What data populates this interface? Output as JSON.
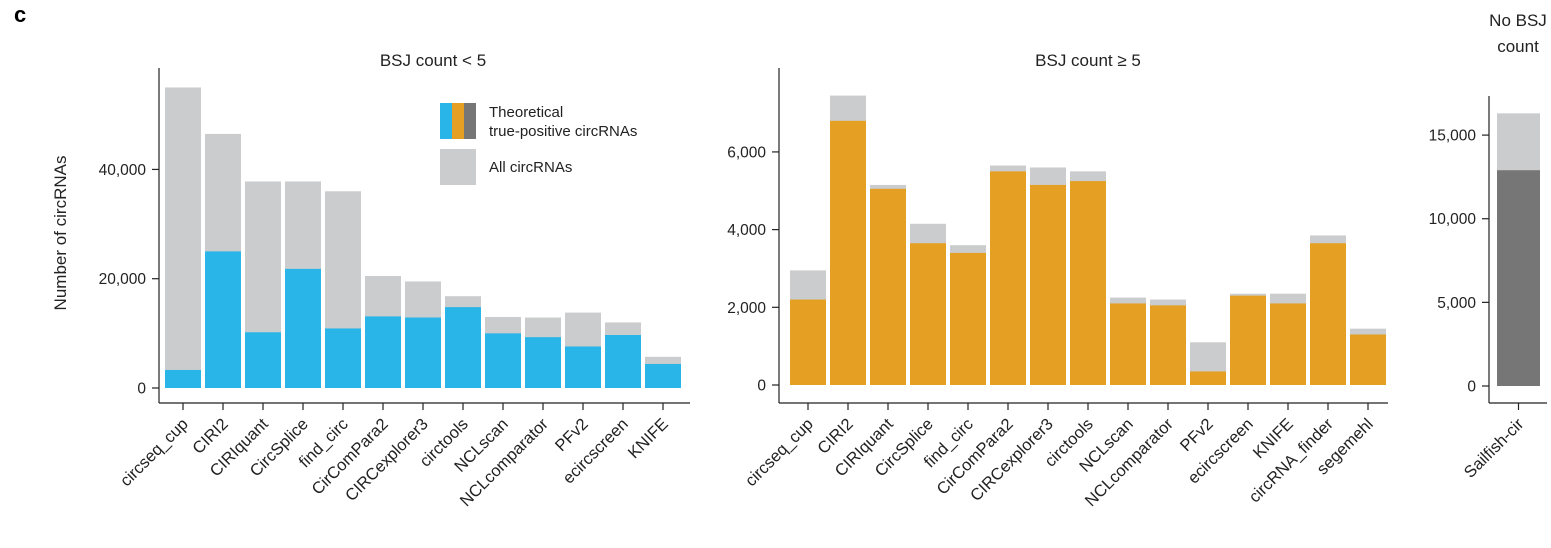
{
  "panel_label": "c",
  "colors": {
    "all": "#cbcccd",
    "blue": "#29b5e8",
    "orange": "#e5a024",
    "dark": "#767676",
    "axis": "#222222"
  },
  "legend": {
    "true_positive_label_line1": "Theoretical",
    "true_positive_label_line2": "true-positive circRNAs",
    "all_label": "All circRNAs"
  },
  "chart_data": [
    {
      "type": "bar",
      "title": "BSJ count < 5",
      "ylabel": "Number of circRNAs",
      "xlabel": "",
      "ylim": [
        0,
        56000
      ],
      "yticks": [
        0,
        20000,
        40000
      ],
      "ytick_labels": [
        "0",
        "20,000",
        "40,000"
      ],
      "categories": [
        "circseq_cup",
        "CIRI2",
        "CIRIquant",
        "CircSplice",
        "find_circ",
        "CirComPara2",
        "CIRCexplorer3",
        "circtools",
        "NCLscan",
        "NCLcomparator",
        "PFv2",
        "ecircscreen",
        "KNIFE"
      ],
      "series": [
        {
          "name": "All circRNAs",
          "values": [
            55000,
            46500,
            37800,
            37800,
            36000,
            20500,
            19500,
            16800,
            13000,
            12900,
            13800,
            12000,
            5700
          ]
        },
        {
          "name": "Theoretical true-positive circRNAs",
          "values": [
            3300,
            25000,
            10200,
            21800,
            10900,
            13100,
            12900,
            14800,
            10000,
            9300,
            7600,
            9700,
            4400
          ]
        }
      ]
    },
    {
      "type": "bar",
      "title": "BSJ count ≥ 5",
      "xlabel": "",
      "ylabel": "",
      "ylim": [
        0,
        7800
      ],
      "yticks": [
        0,
        2000,
        4000,
        6000
      ],
      "ytick_labels": [
        "0",
        "2,000",
        "4,000",
        "6,000"
      ],
      "categories": [
        "circseq_cup",
        "CIRI2",
        "CIRIquant",
        "CircSplice",
        "find_circ",
        "CirComPara2",
        "CIRCexplorer3",
        "circtools",
        "NCLscan",
        "NCLcomparator",
        "PFv2",
        "ecircscreen",
        "KNIFE",
        "circRNA_finder",
        "segemehl"
      ],
      "series": [
        {
          "name": "All circRNAs",
          "values": [
            2950,
            7450,
            5150,
            4150,
            3600,
            5650,
            5600,
            5500,
            2250,
            2200,
            1100,
            2350,
            2350,
            3850,
            1450
          ]
        },
        {
          "name": "Theoretical true-positive circRNAs",
          "values": [
            2200,
            6800,
            5050,
            3650,
            3400,
            5500,
            5150,
            5250,
            2100,
            2050,
            350,
            2300,
            2100,
            3650,
            1300
          ]
        }
      ]
    },
    {
      "type": "bar",
      "title": "No BSJ count",
      "title_line1": "No BSJ",
      "title_line2": "count",
      "xlabel": "",
      "ylabel": "",
      "ylim": [
        0,
        16500
      ],
      "yticks": [
        0,
        5000,
        10000,
        15000
      ],
      "ytick_labels": [
        "0",
        "5,000",
        "10,000",
        "15,000"
      ],
      "categories": [
        "Sailfish-cir"
      ],
      "series": [
        {
          "name": "All circRNAs",
          "values": [
            16300
          ]
        },
        {
          "name": "Theoretical true-positive circRNAs",
          "values": [
            12900
          ]
        }
      ]
    }
  ]
}
